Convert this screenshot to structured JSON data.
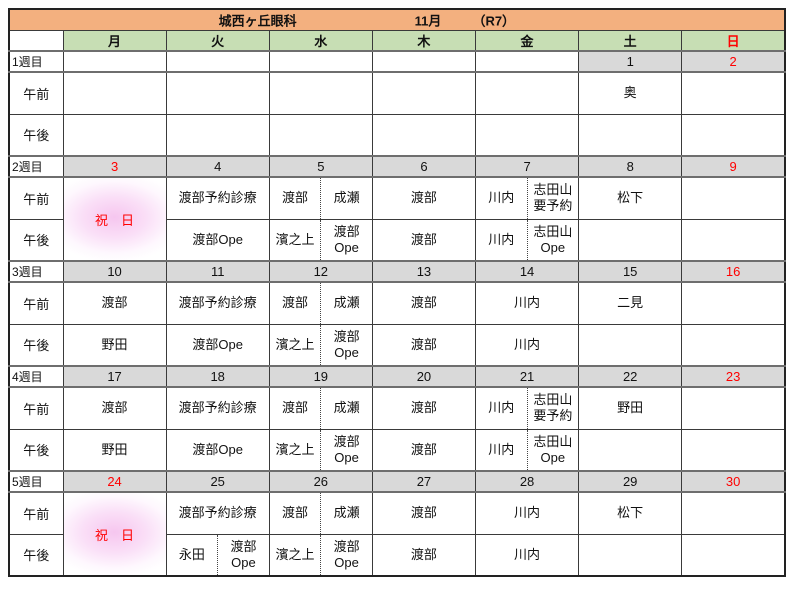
{
  "header": {
    "clinic": "城西ヶ丘眼科",
    "month": "11月",
    "era": "（R7）"
  },
  "day_header": [
    "月",
    "火",
    "水",
    "木",
    "金",
    "土",
    "日"
  ],
  "period_labels": {
    "am": "午前",
    "pm": "午後"
  },
  "colors": {
    "title_bg": "#F3B07F",
    "day_header_bg": "#C7DEB4",
    "week_row_bg": "#D9D9D9",
    "sunday_red": "#FF0000",
    "holiday_pink": "#F6C6EF",
    "border": "#3A3A3A"
  },
  "weeks": [
    {
      "label": "1週目",
      "dates": {
        "mon": "",
        "tue": "",
        "wed": "",
        "thu": "",
        "fri": "",
        "sat": "1",
        "sun": "2"
      },
      "am": {
        "mon": "",
        "tue": "",
        "wed": "",
        "thu": "",
        "fri": "",
        "sat": "奥",
        "sun": ""
      },
      "pm": {
        "mon": "",
        "tue": "",
        "wed": "",
        "thu": "",
        "fri": "",
        "sat": "",
        "sun": ""
      }
    },
    {
      "label": "2週目",
      "dates": {
        "mon": "3",
        "tue": "4",
        "wed": "5",
        "thu": "6",
        "fri": "7",
        "sat": "8",
        "sun": "9"
      },
      "holiday": "祝　日",
      "am": {
        "tue": "渡部予約診療",
        "wed_l": "渡部",
        "wed_r": "成瀬",
        "thu": "渡部",
        "fri_l": "川内",
        "fri_r": "志田山\n要予約",
        "sat": "松下",
        "sun": ""
      },
      "pm": {
        "tue": "渡部Ope",
        "wed_l": "濱之上",
        "wed_r": "渡部\nOpe",
        "thu": "渡部",
        "fri_l": "川内",
        "fri_r": "志田山\nOpe",
        "sat": "",
        "sun": ""
      }
    },
    {
      "label": "3週目",
      "dates": {
        "mon": "10",
        "tue": "11",
        "wed": "12",
        "thu": "13",
        "fri": "14",
        "sat": "15",
        "sun": "16"
      },
      "am": {
        "mon": "渡部",
        "tue": "渡部予約診療",
        "wed_l": "渡部",
        "wed_r": "成瀬",
        "thu": "渡部",
        "fri": "川内",
        "sat": "二見",
        "sun": ""
      },
      "pm": {
        "mon": "野田",
        "tue": "渡部Ope",
        "wed_l": "濱之上",
        "wed_r": "渡部\nOpe",
        "thu": "渡部",
        "fri": "川内",
        "sat": "",
        "sun": ""
      }
    },
    {
      "label": "4週目",
      "dates": {
        "mon": "17",
        "tue": "18",
        "wed": "19",
        "thu": "20",
        "fri": "21",
        "sat": "22",
        "sun": "23"
      },
      "am": {
        "mon": "渡部",
        "tue": "渡部予約診療",
        "wed_l": "渡部",
        "wed_r": "成瀬",
        "thu": "渡部",
        "fri_l": "川内",
        "fri_r": "志田山\n要予約",
        "sat": "野田",
        "sun": ""
      },
      "pm": {
        "mon": "野田",
        "tue": "渡部Ope",
        "wed_l": "濱之上",
        "wed_r": "渡部\nOpe",
        "thu": "渡部",
        "fri_l": "川内",
        "fri_r": "志田山\nOpe",
        "sat": "",
        "sun": ""
      }
    },
    {
      "label": "5週目",
      "dates": {
        "mon": "24",
        "tue": "25",
        "wed": "26",
        "thu": "27",
        "fri": "28",
        "sat": "29",
        "sun": "30"
      },
      "holiday": "祝　日",
      "am": {
        "tue": "渡部予約診療",
        "wed_l": "渡部",
        "wed_r": "成瀬",
        "thu": "渡部",
        "fri": "川内",
        "sat": "松下",
        "sun": ""
      },
      "pm": {
        "tue_l": "永田",
        "tue_r": "渡部\nOpe",
        "wed_l": "濱之上",
        "wed_r": "渡部\nOpe",
        "thu": "渡部",
        "fri": "川内",
        "sat": "",
        "sun": ""
      }
    }
  ]
}
